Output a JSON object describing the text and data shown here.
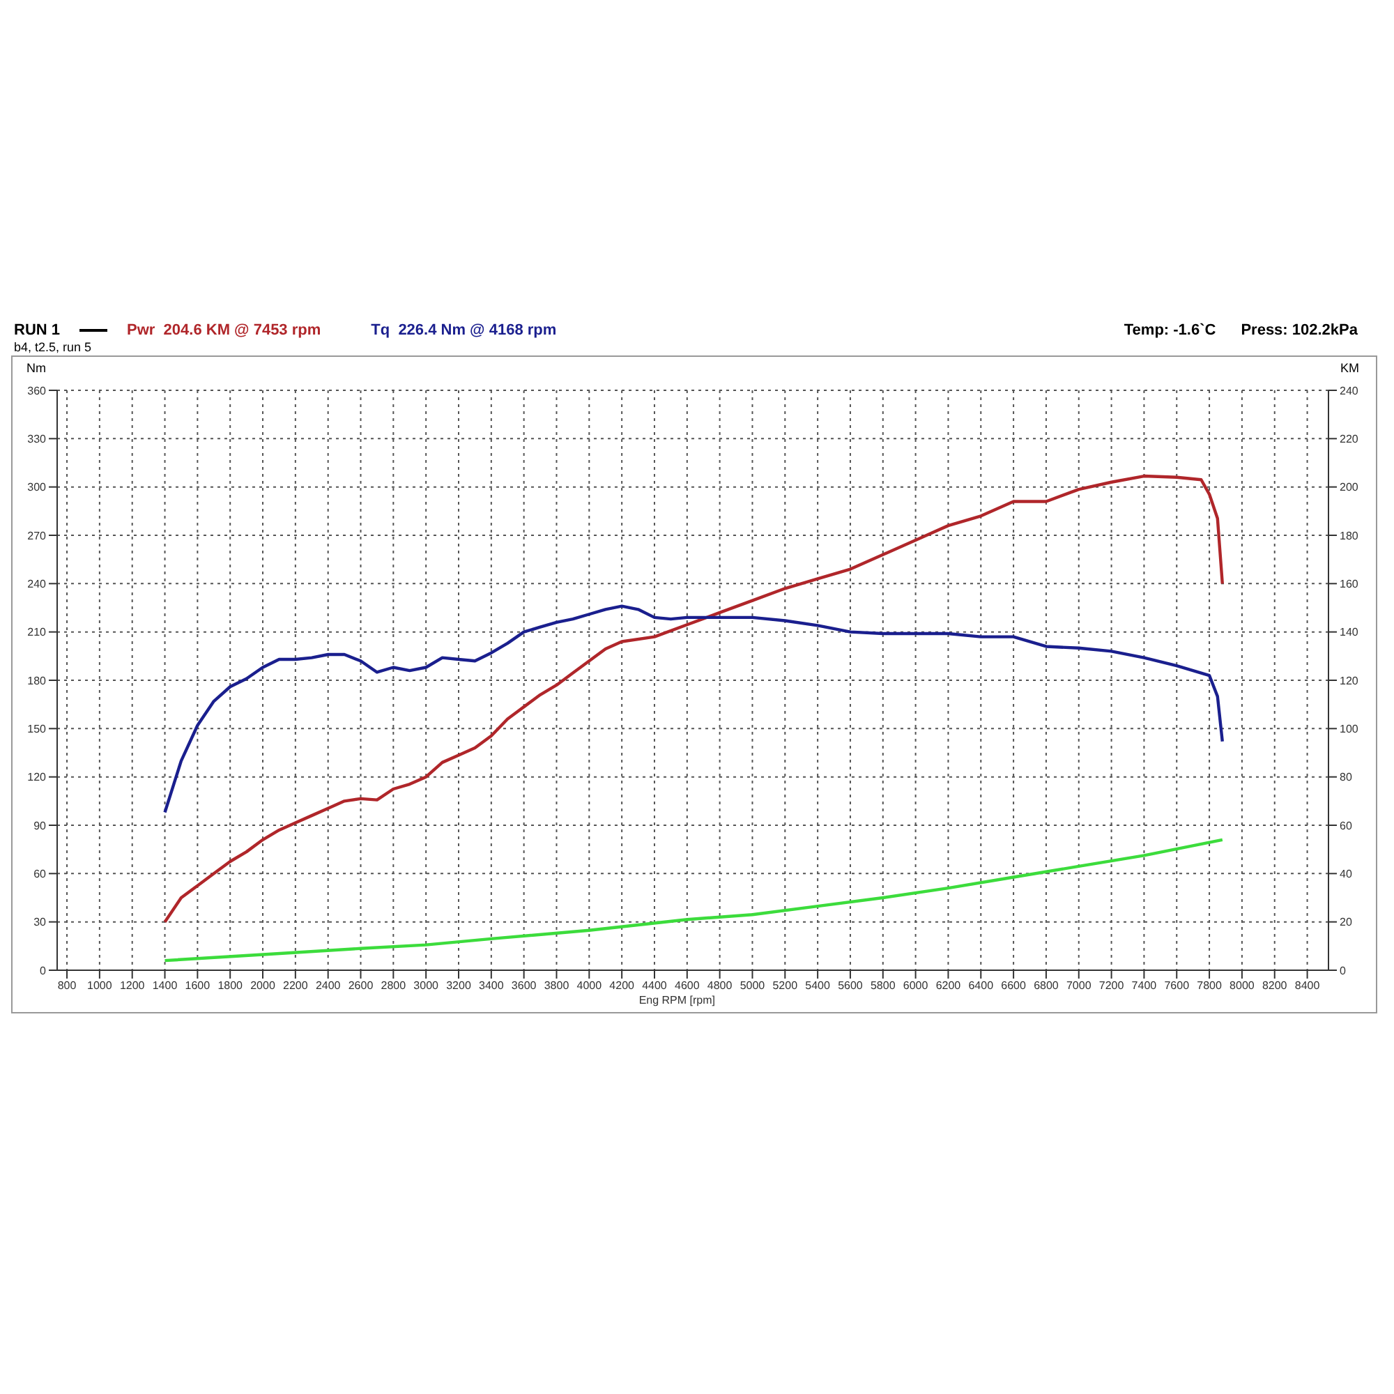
{
  "chart_data": {
    "type": "line",
    "title": "RUN 1",
    "subtitle": "b4, t2.5, run 5",
    "xlabel": "Eng RPM [rpm]",
    "ylabel": "Nm",
    "y2label": "KM",
    "annotations": [
      "Temp: -1.6`C",
      "Press: 102.2kPa"
    ],
    "series": [
      {
        "name": "Pwr  204.6 KM @ 7453 rpm",
        "color": "#b0262a",
        "axis": "y2",
        "x": [
          1400,
          1500,
          1600,
          1700,
          1800,
          1900,
          2000,
          2100,
          2200,
          2300,
          2400,
          2500,
          2600,
          2700,
          2800,
          2900,
          3000,
          3100,
          3200,
          3300,
          3400,
          3500,
          3600,
          3700,
          3800,
          3900,
          4000,
          4100,
          4200,
          4400,
          4600,
          4800,
          5000,
          5200,
          5400,
          5600,
          5800,
          6000,
          6200,
          6400,
          6600,
          6800,
          7000,
          7200,
          7400,
          7600,
          7750,
          7800,
          7850,
          7880
        ],
        "values": [
          20,
          30,
          35,
          40,
          45,
          49,
          54,
          58,
          61,
          64,
          67,
          70,
          71,
          70.5,
          75,
          77,
          80,
          86,
          89,
          92,
          97,
          104,
          109,
          114,
          118,
          123,
          128,
          133,
          136,
          138,
          143,
          148,
          153,
          158,
          162,
          166,
          172,
          178,
          184,
          188,
          194,
          194,
          199,
          202,
          204.5,
          204,
          203,
          197,
          187,
          160
        ]
      },
      {
        "name": "Tq  226.4 Nm @ 4168 rpm",
        "color": "#1a1f8e",
        "axis": "y",
        "x": [
          1400,
          1500,
          1600,
          1700,
          1800,
          1900,
          2000,
          2100,
          2200,
          2300,
          2400,
          2500,
          2600,
          2700,
          2800,
          2900,
          3000,
          3100,
          3200,
          3300,
          3400,
          3500,
          3600,
          3700,
          3800,
          3900,
          4000,
          4100,
          4200,
          4300,
          4400,
          4500,
          4600,
          4800,
          5000,
          5200,
          5400,
          5600,
          5800,
          6000,
          6200,
          6400,
          6600,
          6800,
          7000,
          7200,
          7400,
          7600,
          7800,
          7850,
          7880
        ],
        "values": [
          98,
          130,
          152,
          167,
          176,
          181,
          188,
          193,
          193,
          194,
          196,
          196,
          192,
          185,
          188,
          186,
          188,
          194,
          193,
          192,
          197,
          203,
          210,
          213,
          216,
          218,
          221,
          224,
          226,
          224,
          219,
          218,
          219,
          219,
          219,
          217,
          214,
          210,
          209,
          209,
          209,
          207,
          207,
          201,
          200,
          198,
          194,
          189,
          183,
          170,
          142
        ]
      },
      {
        "color": "#3cdc3c",
        "axis": "y2",
        "x": [
          1400,
          2000,
          2600,
          3000,
          3400,
          4000,
          4600,
          5000,
          5400,
          5800,
          6200,
          6600,
          7000,
          7400,
          7880
        ],
        "values": [
          4,
          6.5,
          9,
          10.5,
          13,
          16.5,
          21,
          23,
          26.5,
          30,
          34,
          38.5,
          43,
          47.5,
          54
        ]
      }
    ],
    "xlim": [
      740,
      8530
    ],
    "xticks": [
      800,
      1000,
      1200,
      1400,
      1600,
      1800,
      2000,
      2200,
      2400,
      2600,
      2800,
      3000,
      3200,
      3400,
      3600,
      3800,
      4000,
      4200,
      4400,
      4600,
      4800,
      5000,
      5200,
      5400,
      5600,
      5800,
      6000,
      6200,
      6400,
      6600,
      6800,
      7000,
      7200,
      7400,
      7600,
      7800,
      8000,
      8200,
      8400
    ],
    "ylim": [
      0,
      360
    ],
    "yticks": [
      0,
      30,
      60,
      90,
      120,
      150,
      180,
      210,
      240,
      270,
      300,
      330,
      360
    ],
    "y2lim": [
      0,
      240
    ],
    "y2ticks": [
      0,
      20,
      40,
      60,
      80,
      100,
      120,
      140,
      160,
      180,
      200,
      220,
      240
    ],
    "grid": true,
    "legend": "top left",
    "line_style": "solid"
  }
}
